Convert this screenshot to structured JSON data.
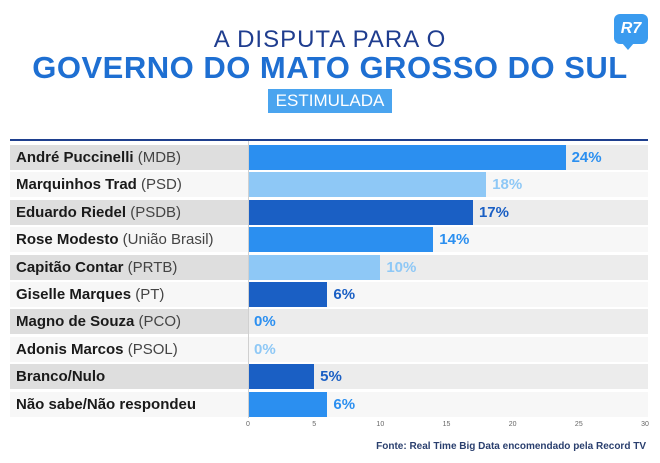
{
  "header": {
    "title_line1": "A DISPUTA PARA O",
    "title_line2": "GOVERNO DO MATO GROSSO DO SUL",
    "tag": "ESTIMULADA",
    "logo": "R7"
  },
  "source": "Fonte: Real Time Big Data encomendado pela Record TV",
  "chart_data": {
    "type": "bar",
    "orientation": "horizontal",
    "categories": [
      {
        "name": "André Puccinelli",
        "party": "(MDB)"
      },
      {
        "name": "Marquinhos Trad",
        "party": "(PSD)"
      },
      {
        "name": "Eduardo Riedel",
        "party": "(PSDB)"
      },
      {
        "name": "Rose Modesto",
        "party": "(União Brasil)"
      },
      {
        "name": "Capitão Contar",
        "party": "(PRTB)"
      },
      {
        "name": "Giselle Marques",
        "party": "(PT)"
      },
      {
        "name": "Magno de Souza",
        "party": "(PCO)"
      },
      {
        "name": "Adonis Marcos",
        "party": "(PSOL)"
      },
      {
        "name": "Branco/Nulo",
        "party": ""
      },
      {
        "name": "Não sabe/Não respondeu",
        "party": ""
      }
    ],
    "values": [
      24,
      18,
      17,
      14,
      10,
      6,
      0,
      0,
      5,
      6
    ],
    "value_labels": [
      "24%",
      "18%",
      "17%",
      "14%",
      "10%",
      "6%",
      "0%",
      "0%",
      "5%",
      "6%"
    ],
    "bar_colors": [
      "#2b8ff0",
      "#8ec8f6",
      "#1a5fc4",
      "#2b8ff0",
      "#8ec8f6",
      "#1a5fc4",
      "#2b8ff0",
      "#8ec8f6",
      "#1a5fc4",
      "#2b8ff0"
    ],
    "label_colors": [
      "#2b8ff0",
      "#8ec8f6",
      "#1a5fc4",
      "#2b8ff0",
      "#8ec8f6",
      "#1a5fc4",
      "#2b8ff0",
      "#8ec8f6",
      "#1a5fc4",
      "#2b8ff0"
    ],
    "xlim": [
      0,
      30
    ],
    "xticks": [
      "0",
      "5",
      "10",
      "15",
      "20",
      "25",
      "30"
    ],
    "grid": true
  }
}
